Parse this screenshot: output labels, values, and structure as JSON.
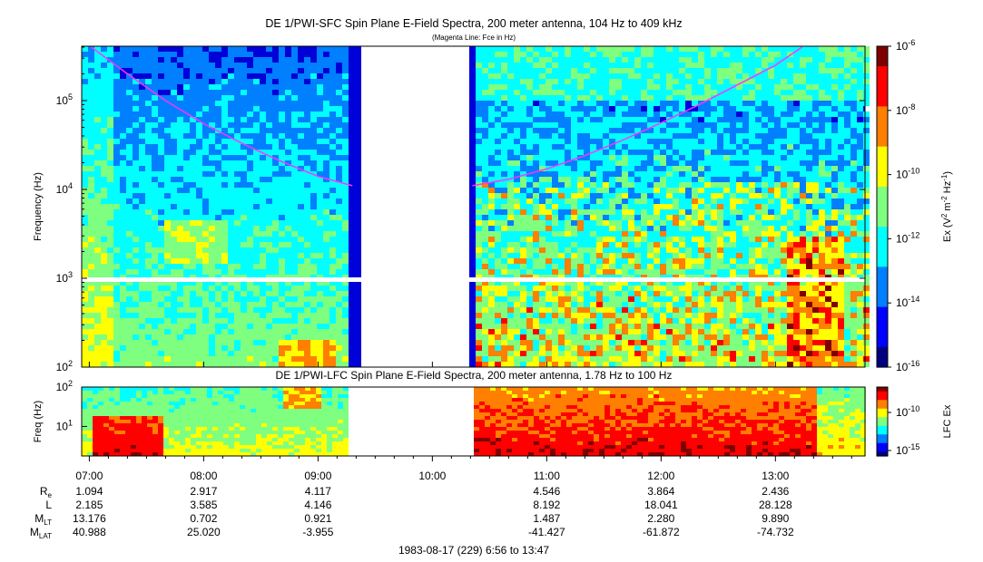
{
  "title": "DE 1/PWI-SFC  Spin Plane E-Field Spectra, 200 meter antenna, 104 Hz to 409 kHz",
  "subtitle": "(Magenta Line: Fce in Hz)",
  "colors": {
    "fce_line": "#ff33ff",
    "colormap": [
      "#00007f",
      "#0000ff",
      "#007fff",
      "#00ffff",
      "#7fff7f",
      "#ffff00",
      "#ff7f00",
      "#ff0000",
      "#7f0000"
    ]
  },
  "chart_data": [
    {
      "type": "heatmap",
      "name": "sfc",
      "title": "DE 1/PWI-SFC  Spin Plane E-Field Spectra, 200 meter antenna, 104 Hz to 409 kHz",
      "subtitle": "(Magenta Line: Fce in Hz)",
      "ylabel": "Frequency (Hz)",
      "yscale": "log",
      "ylim": [
        100,
        409000
      ],
      "yticks": [
        {
          "value": 100,
          "base": "10",
          "exp": "2"
        },
        {
          "value": 1000,
          "base": "10",
          "exp": "3"
        },
        {
          "value": 10000,
          "base": "10",
          "exp": "4"
        },
        {
          "value": 100000,
          "base": "10",
          "exp": "5"
        }
      ],
      "xlim_minutes": [
        416,
        827
      ],
      "data_gap_minutes": [
        558,
        621
      ],
      "fce_line": {
        "label": "Fce in Hz",
        "segments": [
          [
            [
              421,
              400000
            ],
            [
              440,
              200000
            ],
            [
              460,
              100000
            ],
            [
              480,
              55000
            ],
            [
              500,
              33000
            ],
            [
              520,
              21000
            ],
            [
              540,
              14000
            ],
            [
              558,
              11000
            ]
          ],
          [
            [
              621,
              11000
            ],
            [
              640,
              13000
            ],
            [
              660,
              17000
            ],
            [
              680,
              24000
            ],
            [
              700,
              36000
            ],
            [
              720,
              56000
            ],
            [
              740,
              90000
            ],
            [
              760,
              150000
            ],
            [
              780,
              250000
            ],
            [
              794,
              400000
            ]
          ]
        ]
      },
      "colorbar": {
        "label_parts": {
          "base": "Ex (V",
          "sup1": "2",
          "mid": " m",
          "sup2": "-2",
          "mid2": " Hz",
          "sup3": "-1",
          "end": ")"
        },
        "scale": "log",
        "range": [
          1e-16,
          1e-06
        ],
        "ticks": [
          {
            "base": "10",
            "exp": "-6"
          },
          {
            "base": "10",
            "exp": "-8"
          },
          {
            "base": "10",
            "exp": "-10"
          },
          {
            "base": "10",
            "exp": "-12"
          },
          {
            "base": "10",
            "exp": "-14"
          },
          {
            "base": "10",
            "exp": "-16"
          }
        ]
      }
    },
    {
      "type": "heatmap",
      "name": "lfc",
      "title": "DE 1/PWI-LFC  Spin Plane E-Field Spectra, 200 meter antenna, 1.78 Hz to 100 Hz",
      "ylabel": "Freq (Hz)",
      "yscale": "log",
      "ylim": [
        1.78,
        100
      ],
      "yticks": [
        {
          "value": 10,
          "base": "10",
          "exp": "1"
        },
        {
          "value": 100,
          "base": "10",
          "exp": "2"
        }
      ],
      "xlim_minutes": [
        416,
        827
      ],
      "data_gap_minutes": [
        558,
        621
      ],
      "colorbar": {
        "label": "LFC Ex",
        "scale": "log",
        "ticks": [
          {
            "base": "10",
            "exp": "-10"
          },
          {
            "base": "10",
            "exp": "-15"
          }
        ]
      }
    }
  ],
  "time_axis": {
    "ticks": [
      {
        "label": "07:00",
        "minutes": 420
      },
      {
        "label": "08:00",
        "minutes": 480
      },
      {
        "label": "09:00",
        "minutes": 540
      },
      {
        "label": "10:00",
        "minutes": 600
      },
      {
        "label": "11:00",
        "minutes": 660
      },
      {
        "label": "12:00",
        "minutes": 720
      },
      {
        "label": "13:00",
        "minutes": 780
      }
    ]
  },
  "ephemeris": {
    "rows": [
      {
        "label": "R",
        "sub": "e",
        "values": [
          "1.094",
          "2.917",
          "4.117",
          "",
          "4.546",
          "3.864",
          "2.436"
        ]
      },
      {
        "label": "L",
        "sub": "",
        "values": [
          "2.185",
          "3.585",
          "4.146",
          "",
          "8.192",
          "18.041",
          "28.128"
        ]
      },
      {
        "label": "M",
        "sub": "LT",
        "values": [
          "13.176",
          "0.702",
          "0.921",
          "",
          "1.487",
          "2.280",
          "9.890"
        ]
      },
      {
        "label": "M",
        "sub": "LAT",
        "values": [
          "40.988",
          "25.020",
          "-3.955",
          "",
          "-41.427",
          "-61.872",
          "-74.732"
        ]
      }
    ]
  },
  "footer": "1983-08-17 (229) 6:56 to 13:47"
}
